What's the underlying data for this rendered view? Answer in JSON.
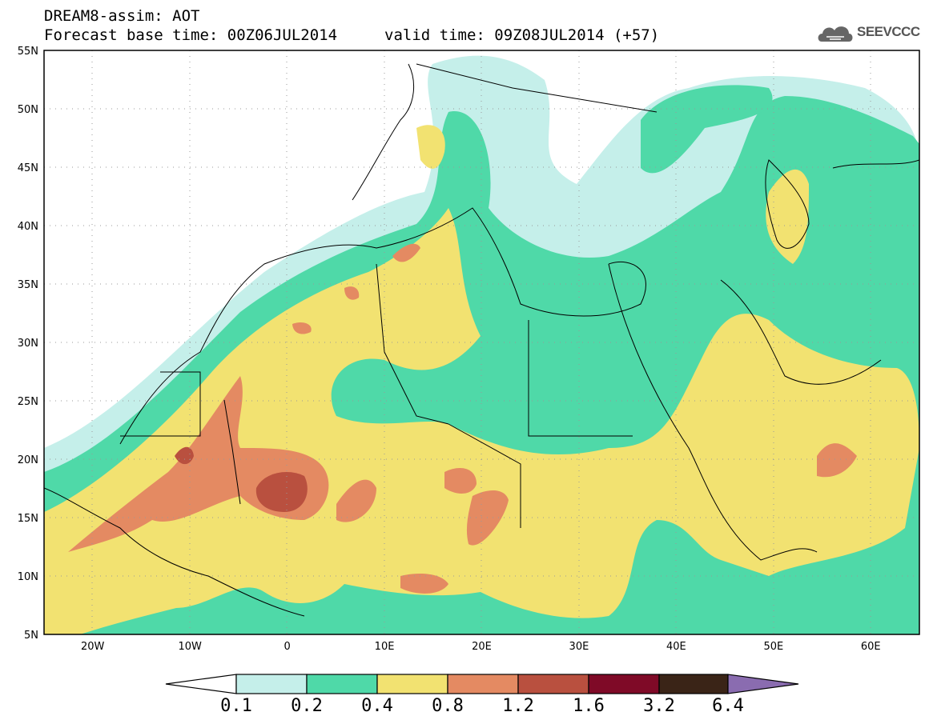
{
  "header": {
    "title_line1": "DREAM8-assim: AOT",
    "title_line2": "Forecast base time: 00Z06JUL2014",
    "valid_time": "valid time: 09Z08JUL2014 (+57)"
  },
  "logo": {
    "text": "SEEVCCC",
    "icon": "cloud-icon"
  },
  "map": {
    "lat_labels": [
      "55N",
      "50N",
      "45N",
      "40N",
      "35N",
      "30N",
      "25N",
      "20N",
      "15N",
      "10N",
      "5N"
    ],
    "lon_labels": [
      "20W",
      "10W",
      "0",
      "10E",
      "20E",
      "30E",
      "40E",
      "50E",
      "60E"
    ],
    "lon_range": [
      -25,
      65
    ],
    "lat_range": [
      5,
      55
    ]
  },
  "colorbar": {
    "levels": [
      "0.1",
      "0.2",
      "0.4",
      "0.8",
      "1.2",
      "1.6",
      "3.2",
      "6.4"
    ],
    "colors": [
      "#ffffff",
      "#c5efea",
      "#4fd9a8",
      "#f2e271",
      "#e48a62",
      "#b9503f",
      "#7f0a27",
      "#3a2417",
      "#8a6cb0"
    ]
  },
  "colors": {
    "c1": "#c5efea",
    "c2": "#4fd9a8",
    "c3": "#f2e271",
    "c4": "#e48a62",
    "c5": "#b9503f"
  }
}
